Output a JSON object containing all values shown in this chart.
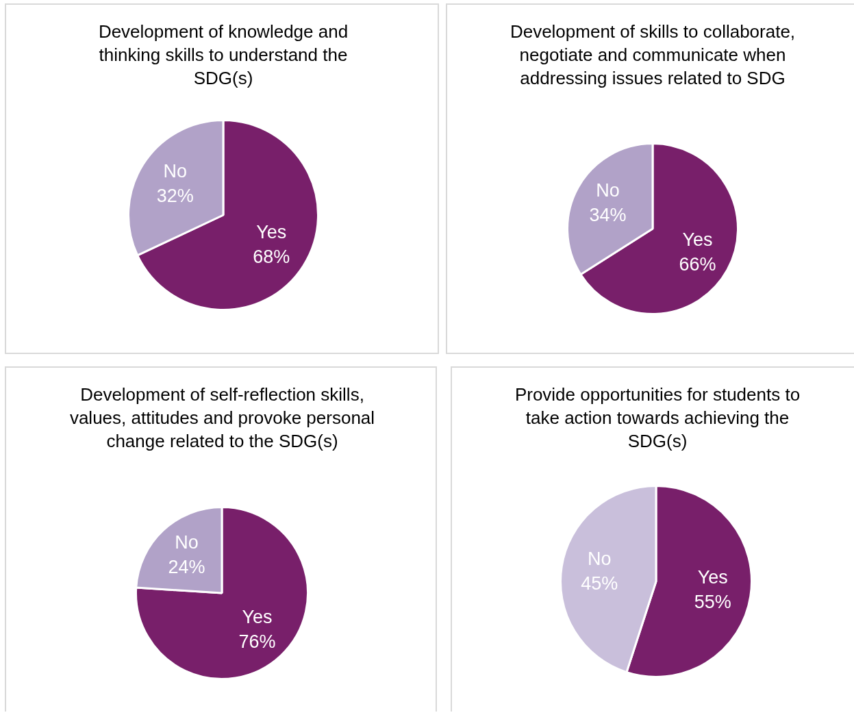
{
  "chart_data": [
    {
      "type": "pie",
      "title": "Development of knowledge and thinking skills to understand the SDG(s)",
      "categories": [
        "Yes",
        "No"
      ],
      "values": [
        68,
        32
      ],
      "value_labels": [
        "68%",
        "32%"
      ],
      "colors": [
        "#781f6a",
        "#b1a2c8"
      ],
      "legend": false
    },
    {
      "type": "pie",
      "title": "Development of skills to collaborate, negotiate and communicate when addressing issues related to SDG",
      "categories": [
        "Yes",
        "No"
      ],
      "values": [
        66,
        34
      ],
      "value_labels": [
        "66%",
        "34%"
      ],
      "colors": [
        "#781f6a",
        "#b1a2c8"
      ],
      "legend": false
    },
    {
      "type": "pie",
      "title": "Development of self-reflection skills, values, attitudes and provoke personal change related to the SDG(s)",
      "categories": [
        "Yes",
        "No"
      ],
      "values": [
        76,
        24
      ],
      "value_labels": [
        "76%",
        "24%"
      ],
      "colors": [
        "#781f6a",
        "#b1a2c8"
      ],
      "legend": false
    },
    {
      "type": "pie",
      "title": "Provide opportunities for students to take action towards achieving the SDG(s)",
      "categories": [
        "Yes",
        "No"
      ],
      "values": [
        55,
        45
      ],
      "value_labels": [
        "55%",
        "45%"
      ],
      "colors": [
        "#781f6a",
        "#c9bfdb"
      ],
      "legend": false
    }
  ]
}
